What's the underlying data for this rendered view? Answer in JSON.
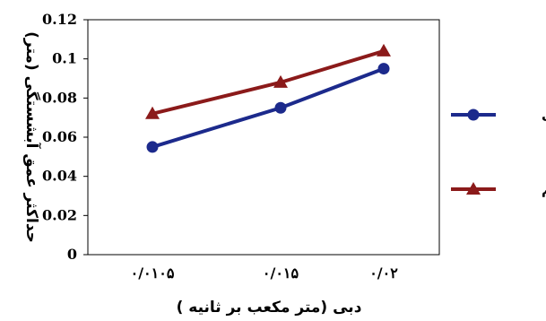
{
  "chart_data": {
    "type": "line",
    "title": "",
    "xlabel": "دبی (متر مکعب بر ثانیه )",
    "ylabel": "حداکثر عمق آبشستگی (متر)",
    "categories": [
      "۰/۰۱۰۵",
      "۰/۰۱۵",
      "۰/۰۲"
    ],
    "ylim": [
      0,
      0.12
    ],
    "yticks": [
      "0",
      "0.02",
      "0.04",
      "0.06",
      "0.08",
      "0.1",
      "0.12"
    ],
    "grid": false,
    "legend_position": "right",
    "series": [
      {
        "name": "چوگانی",
        "values": [
          0.055,
          0.075,
          0.095
        ],
        "color": "#1c2a8c",
        "marker": "circle"
      },
      {
        "name": "مستقیم",
        "values": [
          0.072,
          0.088,
          0.104
        ],
        "color": "#8b1a1a",
        "marker": "triangle"
      }
    ]
  }
}
